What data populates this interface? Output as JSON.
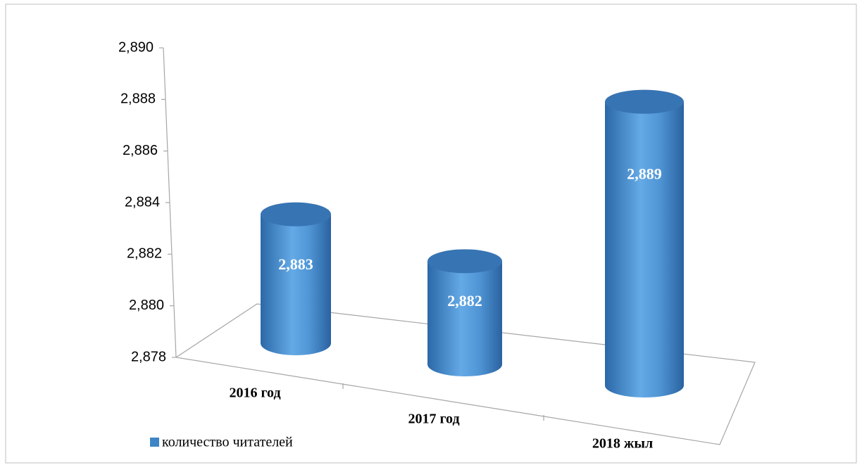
{
  "chart_data": {
    "type": "bar3d",
    "categories": [
      "2016 год",
      "2017 год",
      "2018 жыл"
    ],
    "series": [
      {
        "name": "количество читателей",
        "color": "#3d85c6",
        "values": [
          2883,
          2882,
          2889
        ],
        "value_labels": [
          "2,883",
          "2,882",
          "2,889"
        ]
      }
    ],
    "ylim": [
      2878,
      2890
    ],
    "yticks": [
      {
        "value": 2878,
        "label": "2,878"
      },
      {
        "value": 2880,
        "label": "2,880"
      },
      {
        "value": 2882,
        "label": "2,882"
      },
      {
        "value": 2884,
        "label": "2,884"
      },
      {
        "value": 2886,
        "label": "2,886"
      },
      {
        "value": 2888,
        "label": "2,888"
      },
      {
        "value": 2890,
        "label": "2,890"
      }
    ],
    "legend": "bottom-left"
  }
}
